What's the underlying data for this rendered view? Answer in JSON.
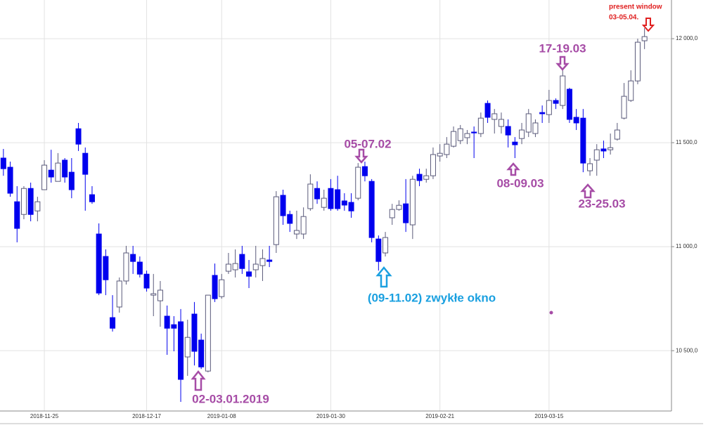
{
  "chart_data": {
    "type": "candlestick",
    "categories": [
      null,
      null,
      null,
      null,
      null,
      null,
      "2018-11-25",
      null,
      null,
      null,
      null,
      null,
      null,
      null,
      null,
      null,
      null,
      null,
      null,
      null,
      null,
      "2018-12-17",
      null,
      null,
      null,
      null,
      null,
      null,
      null,
      null,
      null,
      null,
      "2019-01-08",
      null,
      null,
      null,
      null,
      null,
      null,
      null,
      null,
      null,
      null,
      null,
      null,
      null,
      null,
      null,
      "2019-01-30",
      null,
      null,
      null,
      null,
      null,
      null,
      null,
      null,
      null,
      null,
      null,
      null,
      null,
      null,
      null,
      "2019-02-21",
      null,
      null,
      null,
      null,
      null,
      null,
      null,
      null,
      null,
      null,
      null,
      null,
      null,
      null,
      null,
      "2019-03-15",
      null,
      null,
      null,
      null,
      null,
      null,
      null,
      null,
      null,
      null,
      null,
      null,
      null,
      null
    ],
    "open": [
      11426,
      11382,
      11216,
      11155,
      11280,
      11172,
      11274,
      11368,
      11314,
      11416,
      11358,
      11567,
      11449,
      11250,
      11061,
      10953,
      10659,
      10710,
      10835,
      10963,
      10926,
      10868,
      10767,
      10740,
      10666,
      10625,
      10639,
      10470,
      10676,
      10551,
      10402,
      10862,
      10760,
      10882,
      10889,
      10963,
      10879,
      10889,
      10909,
      10936,
      11010,
      11247,
      11155,
      11061,
      11061,
      11183,
      11280,
      11189,
      11280,
      11274,
      11220,
      11213,
      11233,
      11385,
      11314,
      11037,
      10970,
      11139,
      11179,
      11206,
      11105,
      11348,
      11324,
      11341,
      11436,
      11443,
      11483,
      11510,
      11524,
      11551,
      11544,
      11689,
      11612,
      11578,
      11578,
      11503,
      11520,
      11551,
      11544,
      11645,
      11635,
      11703,
      11679,
      11757,
      11622,
      11618,
      11365,
      11416,
      11470,
      11466,
      11517,
      11618,
      11703,
      11797,
      11990
    ],
    "high": [
      11470,
      11409,
      11291,
      11291,
      11308,
      11240,
      11416,
      11466,
      11450,
      11426,
      11426,
      11595,
      11477,
      11291,
      11112,
      10987,
      10767,
      10852,
      11004,
      11004,
      10953,
      10885,
      10869,
      10835,
      10717,
      10666,
      10700,
      10649,
      10734,
      10582,
      10767,
      10919,
      10869,
      10970,
      10987,
      11004,
      10936,
      11004,
      10987,
      11004,
      11267,
      11274,
      11173,
      11173,
      11189,
      11348,
      11314,
      11274,
      11325,
      11341,
      11257,
      11257,
      11402,
      11409,
      11325,
      11054,
      11071,
      11206,
      11223,
      11325,
      11341,
      11375,
      11375,
      11477,
      11493,
      11527,
      11578,
      11585,
      11561,
      11578,
      11645,
      11703,
      11662,
      11645,
      11612,
      11527,
      11595,
      11662,
      11612,
      11679,
      11754,
      11713,
      11848,
      11764,
      11662,
      11662,
      11426,
      11493,
      11510,
      11544,
      11595,
      11787,
      11848,
      12000,
      12051
    ],
    "low": [
      11341,
      11240,
      11021,
      11132,
      11122,
      11122,
      11274,
      11308,
      11314,
      11308,
      11233,
      11460,
      11173,
      11206,
      10767,
      10767,
      10592,
      10683,
      10818,
      10869,
      10852,
      10784,
      10666,
      10615,
      10480,
      10497,
      10254,
      10379,
      10429,
      10412,
      10396,
      10734,
      10750,
      10869,
      10852,
      10869,
      10801,
      10852,
      10835,
      10902,
      10970,
      11105,
      11071,
      11037,
      11037,
      11173,
      11206,
      11173,
      11173,
      11173,
      11173,
      11139,
      11223,
      11314,
      11021,
      10885,
      10953,
      11105,
      11173,
      11071,
      11037,
      11291,
      11308,
      11325,
      11409,
      11426,
      11477,
      11493,
      11493,
      11426,
      11527,
      11595,
      11544,
      11544,
      11477,
      11426,
      11493,
      11527,
      11527,
      11595,
      11595,
      11662,
      11662,
      11595,
      11561,
      11358,
      11341,
      11341,
      11426,
      11443,
      11510,
      11612,
      11696,
      11781,
      11950
    ],
    "close": [
      11375,
      11257,
      11088,
      11280,
      11155,
      11216,
      11392,
      11335,
      11402,
      11335,
      11274,
      11493,
      11348,
      11216,
      10777,
      10841,
      10608,
      10835,
      10970,
      10929,
      10868,
      10801,
      10774,
      10791,
      10608,
      10608,
      10362,
      10564,
      10497,
      10422,
      10767,
      10750,
      10841,
      10916,
      10919,
      10895,
      10858,
      10916,
      10943,
      10929,
      11240,
      11149,
      11112,
      11078,
      11145,
      11301,
      11230,
      11233,
      11183,
      11183,
      11200,
      11172,
      11382,
      11341,
      11044,
      10929,
      11044,
      11179,
      11199,
      11115,
      11324,
      11318,
      11341,
      11443,
      11449,
      11493,
      11554,
      11567,
      11544,
      11547,
      11618,
      11622,
      11639,
      11612,
      11537,
      11490,
      11561,
      11639,
      11595,
      11639,
      11703,
      11689,
      11821,
      11612,
      11595,
      11402,
      11399,
      11466,
      11460,
      11476,
      11561,
      11723,
      11797,
      11983,
      12010
    ],
    "up_color": "#ffffff",
    "down_color": "#0000ee",
    "ylim": [
      10210,
      12186
    ],
    "yticks": [
      {
        "value": 10500,
        "label": "10 500,0"
      },
      {
        "value": 11000,
        "label": "11 000,0"
      },
      {
        "value": 11500,
        "label": "11 500,0"
      },
      {
        "value": 12000,
        "label": "12 000,0"
      }
    ],
    "grid": true,
    "annotations": [
      "present window",
      "03-05.04.",
      "17-19.03",
      "05-07.02",
      "08-09.03",
      "23-25.03",
      "(09-11.02) zwykłe okno",
      "02-03.01.2019"
    ]
  }
}
